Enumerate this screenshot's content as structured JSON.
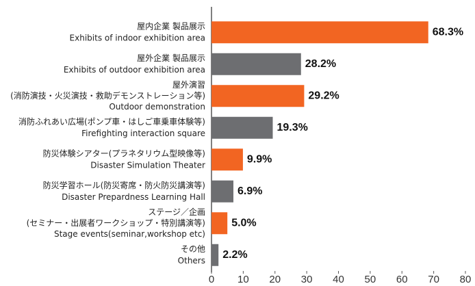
{
  "chart_data": {
    "type": "bar",
    "orientation": "horizontal",
    "categories": [
      [
        "屋内企業 製品展示",
        "Exhibits of indoor exhibition area"
      ],
      [
        "屋外企業 製品展示",
        "Exhibits of outdoor exhibition area"
      ],
      [
        "屋外演習",
        "(消防演技・火災演技・救助デモンストレーション等)",
        "Outdoor demonstration"
      ],
      [
        "消防ふれあい広場(ポンプ車・はしご車乗車体験等)",
        "Firefighting interaction square"
      ],
      [
        "防災体験シアター(プラネタリウム型映像等)",
        "Disaster Simulation Theater"
      ],
      [
        "防災学習ホール(防災寄席・防火防災講演等)",
        "Disaster Prepardness Learning Hall"
      ],
      [
        "ステージ／企画",
        "(セミナー・出展者ワークショップ・特別講演等)",
        "Stage events(seminar,workshop etc)"
      ],
      [
        "その他",
        "Others"
      ]
    ],
    "values": [
      68.3,
      28.2,
      29.2,
      19.3,
      9.9,
      6.9,
      5.0,
      2.2
    ],
    "value_labels": [
      "68.3%",
      "28.2%",
      "29.2%",
      "19.3%",
      "9.9%",
      "6.9%",
      "5.0%",
      "2.2%"
    ],
    "colors": [
      "#f26522",
      "#6d6e71",
      "#f26522",
      "#6d6e71",
      "#f26522",
      "#6d6e71",
      "#f26522",
      "#6d6e71"
    ],
    "xlim": [
      0,
      80
    ],
    "xticks": [
      0,
      10,
      20,
      30,
      40,
      50,
      60,
      70,
      80
    ]
  }
}
